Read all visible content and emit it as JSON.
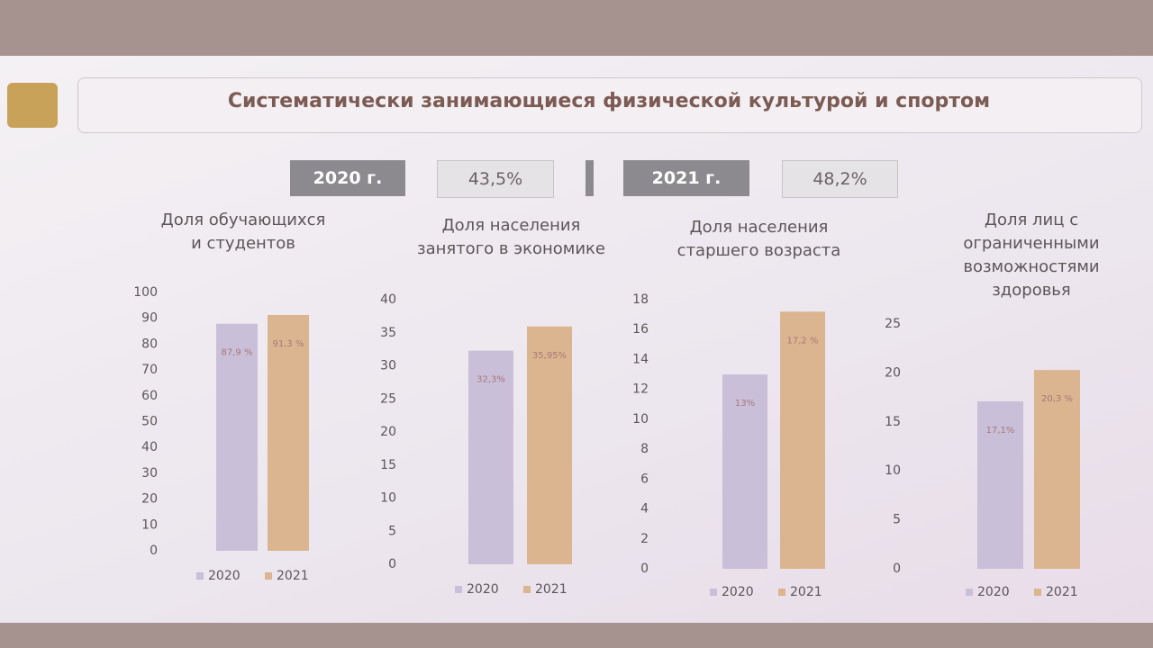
{
  "title": "Систематически занимающиеся физической культурой и спортом",
  "summary": [
    {
      "year": "2020 г.",
      "value": "43,5%"
    },
    {
      "year": "2021 г.",
      "value": "48,2%"
    }
  ],
  "chart_data": [
    {
      "type": "bar",
      "title": "Доля обучающихся и студентов",
      "series": [
        {
          "name": "2020",
          "color": "#c9bfd9",
          "values": [
            87.9
          ],
          "value_labels": [
            "87,9 %"
          ]
        },
        {
          "name": "2021",
          "color": "#dbb58f",
          "values": [
            91.3
          ],
          "value_labels": [
            "91,3 %"
          ]
        }
      ],
      "ylim": [
        0,
        100
      ],
      "yticks": [
        0,
        10,
        20,
        30,
        40,
        50,
        60,
        70,
        80,
        90,
        100
      ]
    },
    {
      "type": "bar",
      "title": "Доля населения занятого в экономике",
      "series": [
        {
          "name": "2020",
          "color": "#c9bfd9",
          "values": [
            32.3
          ],
          "value_labels": [
            "32,3%"
          ]
        },
        {
          "name": "2021",
          "color": "#dbb58f",
          "values": [
            35.95
          ],
          "value_labels": [
            "35,95%"
          ]
        }
      ],
      "ylim": [
        0,
        40
      ],
      "yticks": [
        0,
        5,
        10,
        15,
        20,
        25,
        30,
        35,
        40
      ]
    },
    {
      "type": "bar",
      "title": "Доля населения старшего возраста",
      "series": [
        {
          "name": "2020",
          "color": "#c9bfd9",
          "values": [
            13
          ],
          "value_labels": [
            "13%"
          ]
        },
        {
          "name": "2021",
          "color": "#dbb58f",
          "values": [
            17.2
          ],
          "value_labels": [
            "17,2 %"
          ]
        }
      ],
      "ylim": [
        0,
        18
      ],
      "yticks": [
        0,
        2,
        4,
        6,
        8,
        10,
        12,
        14,
        16,
        18
      ]
    },
    {
      "type": "bar",
      "title": "Доля лиц с ограниченными возможностями здоровья",
      "series": [
        {
          "name": "2020",
          "color": "#c9bfd9",
          "values": [
            17.1
          ],
          "value_labels": [
            "17,1%"
          ]
        },
        {
          "name": "2021",
          "color": "#dbb58f",
          "values": [
            20.3
          ],
          "value_labels": [
            "20,3 %"
          ]
        }
      ],
      "ylim": [
        0,
        25
      ],
      "yticks": [
        0,
        5,
        10,
        15,
        20,
        25
      ]
    }
  ]
}
